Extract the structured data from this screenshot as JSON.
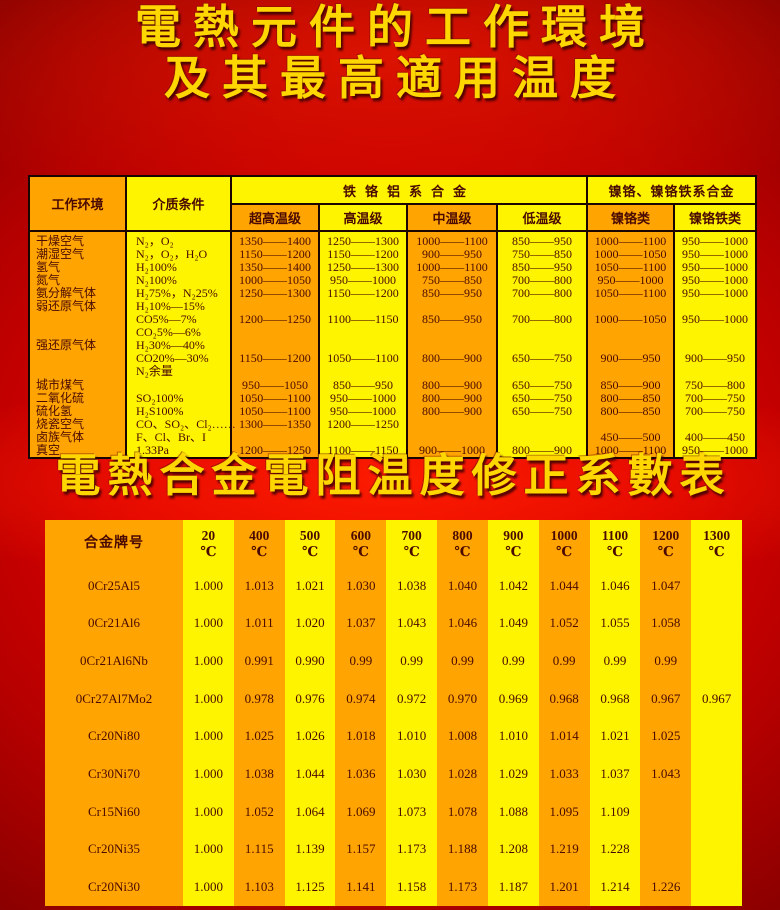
{
  "page": {
    "title_line1": "電熱元件的工作環境",
    "title_line2": "及其最高適用温度",
    "subtitle": "電熱合金電阻温度修正系數表"
  },
  "colors": {
    "background_red": "#C80000",
    "stripe_orange": "#FFA400",
    "stripe_yellow": "#FFF400",
    "title_gold": "#FFD700",
    "table_text": "#4A0A00",
    "border_black": "#1A0500"
  },
  "env_table": {
    "header": {
      "col_env": "工作环境",
      "col_medium": "介质条件",
      "group_fecral": "铁铬铝系合金",
      "group_nicr": "镍铬、镍铬铁系合金",
      "sub_cols": [
        "超高温级",
        "高温级",
        "中温级",
        "低温级",
        "镍铬类",
        "镍铬铁类"
      ]
    },
    "rows": [
      [
        "干燥空气",
        "N₂，O₂",
        "1350——1400",
        "1250——1300",
        "1000——1100",
        "850——950",
        "1000——1100",
        "950——1000"
      ],
      [
        "潮湿空气",
        "N₂，O₂，H₂O",
        "1150——1200",
        "1150——1200",
        "900——950",
        "750——850",
        "1000——1050",
        "950——1000"
      ],
      [
        "氢气",
        "H₂100%",
        "1350——1400",
        "1250——1300",
        "1000——1100",
        "850——950",
        "1050——1100",
        "950——1000"
      ],
      [
        "氮气",
        "N₂100%",
        "1000——1050",
        "950——1000",
        "750——850",
        "700——800",
        "950——1000",
        "950——1000"
      ],
      [
        "氨分解气体",
        "H₂75%，N₂25%",
        "1250——1300",
        "1150——1200",
        "850——950",
        "700——800",
        "1050——1100",
        "950——1000"
      ],
      [
        "弱还原气体",
        "H₂10%—15%",
        "",
        "",
        "",
        "",
        "",
        ""
      ],
      [
        "",
        "CO5%—7%",
        "1200——1250",
        "1100——1150",
        "850——950",
        "700——800",
        "1000——1050",
        "950——1000"
      ],
      [
        "",
        "CO₂5%—6%",
        "",
        "",
        "",
        "",
        "",
        ""
      ],
      [
        "强还原气体",
        "H₂30%—40%",
        "",
        "",
        "",
        "",
        "",
        ""
      ],
      [
        "",
        "CO20%—30%",
        "1150——1200",
        "1050——1100",
        "800——900",
        "650——750",
        "900——950",
        "900——950"
      ],
      [
        "",
        "N₂余量",
        "",
        "",
        "",
        "",
        "",
        ""
      ],
      [
        "城市煤气",
        "",
        "950——1050",
        "850——950",
        "800——900",
        "650——750",
        "850——900",
        "750——800"
      ],
      [
        "二氧化硫",
        "SO₂100%",
        "1050——1100",
        "950——1000",
        "800——900",
        "650——750",
        "800——850",
        "700——750"
      ],
      [
        "硫化氢",
        "H₂S100%",
        "1050——1100",
        "950——1000",
        "800——900",
        "650——750",
        "800——850",
        "700——750"
      ],
      [
        "烧瓷空气",
        "CO、SO₂、Cl₂……",
        "1300——1350",
        "1200——1250",
        "",
        "",
        "",
        ""
      ],
      [
        "卤族气体",
        "F、Cl、Br、I",
        "",
        "",
        "",
        "",
        "450——500",
        "400——450"
      ],
      [
        "真空",
        "1.33Pa",
        "1200——1250",
        "1100——1150",
        "900——1000",
        "800——900",
        "1000——1100",
        "950——1000"
      ]
    ]
  },
  "coef_table": {
    "header_label": "合金牌号",
    "unit": "℃",
    "temps": [
      "20",
      "400",
      "500",
      "600",
      "700",
      "800",
      "900",
      "1000",
      "1100",
      "1200",
      "1300"
    ],
    "rows": [
      {
        "alloy": "0Cr25Al5",
        "values": [
          "1.000",
          "1.013",
          "1.021",
          "1.030",
          "1.038",
          "1.040",
          "1.042",
          "1.044",
          "1.046",
          "1.047",
          ""
        ]
      },
      {
        "alloy": "0Cr21Al6",
        "values": [
          "1.000",
          "1.011",
          "1.020",
          "1.037",
          "1.043",
          "1.046",
          "1.049",
          "1.052",
          "1.055",
          "1.058",
          ""
        ]
      },
      {
        "alloy": "0Cr21Al6Nb",
        "values": [
          "1.000",
          "0.991",
          "0.990",
          "0.99",
          "0.99",
          "0.99",
          "0.99",
          "0.99",
          "0.99",
          "0.99",
          ""
        ]
      },
      {
        "alloy": "0Cr27Al7Mo2",
        "values": [
          "1.000",
          "0.978",
          "0.976",
          "0.974",
          "0.972",
          "0.970",
          "0.969",
          "0.968",
          "0.968",
          "0.967",
          "0.967"
        ]
      },
      {
        "alloy": "Cr20Ni80",
        "values": [
          "1.000",
          "1.025",
          "1.026",
          "1.018",
          "1.010",
          "1.008",
          "1.010",
          "1.014",
          "1.021",
          "1.025",
          ""
        ]
      },
      {
        "alloy": "Cr30Ni70",
        "values": [
          "1.000",
          "1.038",
          "1.044",
          "1.036",
          "1.030",
          "1.028",
          "1.029",
          "1.033",
          "1.037",
          "1.043",
          ""
        ]
      },
      {
        "alloy": "Cr15Ni60",
        "values": [
          "1.000",
          "1.052",
          "1.064",
          "1.069",
          "1.073",
          "1.078",
          "1.088",
          "1.095",
          "1.109",
          "",
          ""
        ]
      },
      {
        "alloy": "Cr20Ni35",
        "values": [
          "1.000",
          "1.115",
          "1.139",
          "1.157",
          "1.173",
          "1.188",
          "1.208",
          "1.219",
          "1.228",
          "",
          ""
        ]
      },
      {
        "alloy": "Cr20Ni30",
        "values": [
          "1.000",
          "1.103",
          "1.125",
          "1.141",
          "1.158",
          "1.173",
          "1.187",
          "1.201",
          "1.214",
          "1.226",
          ""
        ]
      }
    ]
  }
}
